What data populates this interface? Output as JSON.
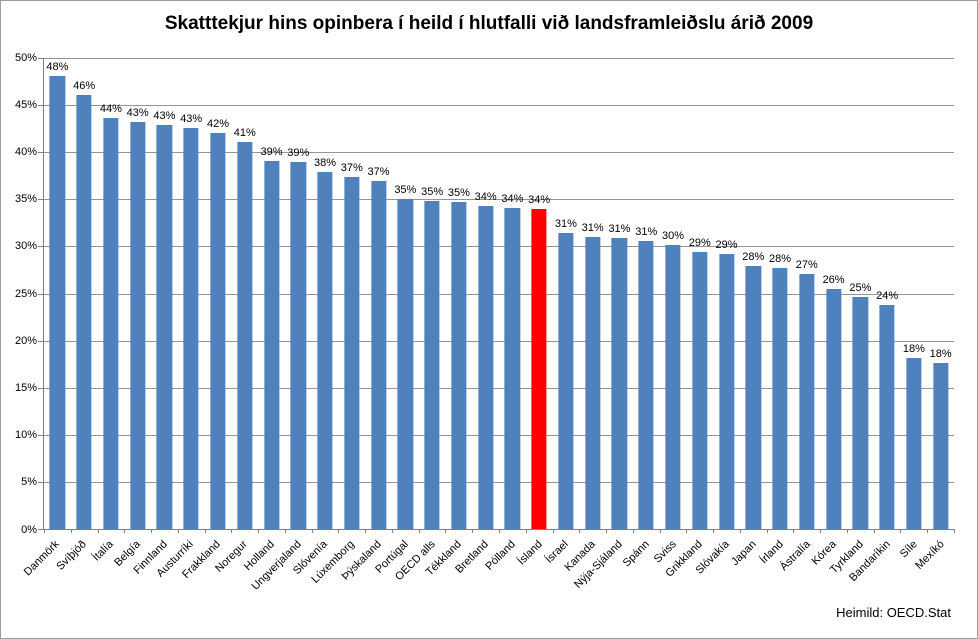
{
  "title": "Skatttekjur hins opinbera í heild í hlutfalli við landsframleiðslu árið 2009",
  "source_note": "Heimild: OECD.Stat",
  "colors": {
    "bar": "#4F81BD",
    "highlight": "#FF0000",
    "gridline": "#959595",
    "axis": "#808080",
    "text": "#000000",
    "background": "#FFFFFF"
  },
  "chart_data": {
    "type": "bar",
    "title": "Skatttekjur hins opinbera í heild í hlutfalli við landsframleiðslu árið 2009",
    "xlabel": "",
    "ylabel": "",
    "ylim": [
      0,
      50
    ],
    "ytick_step": 5,
    "ytick_labels": [
      "0%",
      "5%",
      "10%",
      "15%",
      "20%",
      "25%",
      "30%",
      "35%",
      "40%",
      "45%",
      "50%"
    ],
    "grid": true,
    "legend": false,
    "highlight_category": "Ísland",
    "categories": [
      "Danmörk",
      "Svíþjóð",
      "Ítalía",
      "Belgía",
      "Finnland",
      "Austurríki",
      "Frakkland",
      "Noregur",
      "Holland",
      "Ungverjaland",
      "Slóvenía",
      "Lúxemborg",
      "Þýskaland",
      "Portúgal",
      "OECD alls",
      "Tékkland",
      "Bretland",
      "Pólland",
      "Ísland",
      "Ísrael",
      "Kanada",
      "Nýja-Sjáland",
      "Spánn",
      "Sviss",
      "Grikkland",
      "Slóvakía",
      "Japan",
      "Írland",
      "Ástralía",
      "Kórea",
      "Tyrkland",
      "Bandaríkin",
      "Síle",
      "Mexíkó"
    ],
    "values": [
      48.1,
      46.1,
      43.6,
      43.2,
      42.9,
      42.6,
      42.0,
      41.1,
      39.1,
      39.0,
      37.9,
      37.4,
      36.9,
      35.0,
      34.8,
      34.7,
      34.3,
      34.1,
      34.0,
      31.4,
      31.0,
      30.9,
      30.6,
      30.2,
      29.4,
      29.2,
      27.9,
      27.7,
      27.1,
      25.5,
      24.6,
      23.8,
      18.2,
      17.6
    ],
    "data_labels": [
      "48%",
      "46%",
      "44%",
      "43%",
      "43%",
      "43%",
      "42%",
      "41%",
      "39%",
      "39%",
      "38%",
      "37%",
      "37%",
      "35%",
      "35%",
      "35%",
      "34%",
      "34%",
      "34%",
      "31%",
      "31%",
      "31%",
      "31%",
      "30%",
      "29%",
      "29%",
      "28%",
      "28%",
      "27%",
      "26%",
      "25%",
      "24%",
      "18%",
      "18%"
    ]
  }
}
